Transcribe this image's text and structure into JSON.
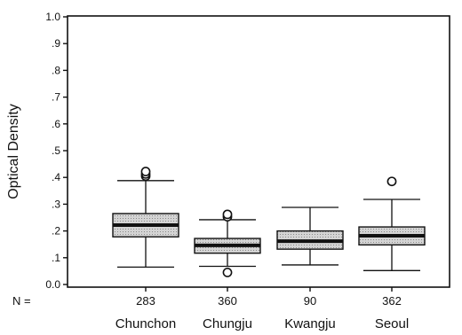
{
  "chart_data": {
    "type": "boxplot",
    "ylabel": "Optical Density",
    "ylim": [
      0.0,
      1.0
    ],
    "y_ticks": [
      {
        "value": 0.0,
        "label": "0.0"
      },
      {
        "value": 0.1,
        "label": ".1"
      },
      {
        "value": 0.2,
        "label": ".2"
      },
      {
        "value": 0.3,
        "label": ".3"
      },
      {
        "value": 0.4,
        "label": ".4"
      },
      {
        "value": 0.5,
        "label": ".5"
      },
      {
        "value": 0.6,
        "label": ".6"
      },
      {
        "value": 0.7,
        "label": ".7"
      },
      {
        "value": 0.8,
        "label": ".8"
      },
      {
        "value": 0.9,
        "label": ".9"
      },
      {
        "value": 1.0,
        "label": "1.0"
      }
    ],
    "n_prefix": "N =",
    "grid": false,
    "groups": [
      {
        "category": "Chunchon",
        "n": "283",
        "min": 0.065,
        "q1": 0.178,
        "median": 0.222,
        "q3": 0.265,
        "max": 0.388,
        "outliers": [
          0.405,
          0.413,
          0.422
        ]
      },
      {
        "category": "Chungju",
        "n": "360",
        "min": 0.068,
        "q1": 0.117,
        "median": 0.146,
        "q3": 0.172,
        "max": 0.242,
        "outliers": [
          0.045,
          0.253,
          0.262
        ]
      },
      {
        "category": "Kwangju",
        "n": "90",
        "min": 0.073,
        "q1": 0.132,
        "median": 0.162,
        "q3": 0.2,
        "max": 0.288,
        "outliers": []
      },
      {
        "category": "Seoul",
        "n": "362",
        "min": 0.052,
        "q1": 0.148,
        "median": 0.182,
        "q3": 0.215,
        "max": 0.318,
        "outliers": [
          0.385
        ]
      }
    ]
  }
}
